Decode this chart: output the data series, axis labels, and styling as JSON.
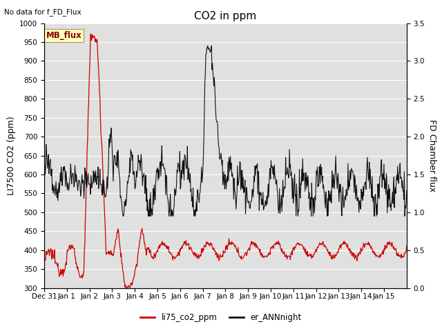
{
  "title": "CO2 in ppm",
  "top_left_text": "No data for f_FD_Flux",
  "ylabel_left": "LI7500 CO2 (ppm)",
  "ylabel_right": "FD Chamber flux",
  "ylim_left": [
    300,
    1000
  ],
  "ylim_right": [
    0.0,
    3.5
  ],
  "yticks_left": [
    300,
    350,
    400,
    450,
    500,
    550,
    600,
    650,
    700,
    750,
    800,
    850,
    900,
    950,
    1000
  ],
  "yticks_right": [
    0.0,
    0.5,
    1.0,
    1.5,
    2.0,
    2.5,
    3.0,
    3.5
  ],
  "xtick_labels": [
    "Dec 31",
    "Jan 1",
    "Jan 2",
    "Jan 3",
    "Jan 4",
    "Jan 5",
    "Jan 6",
    "Jan 7",
    "Jan 8",
    "Jan 9",
    "Jan 10",
    "Jan 11",
    "Jan 12",
    "Jan 13",
    "Jan 14",
    "Jan 15"
  ],
  "legend_labels": [
    "li75_co2_ppm",
    "er_ANNnight"
  ],
  "legend_colors": [
    "#cc0000",
    "#111111"
  ],
  "line_red_color": "#cc0000",
  "line_black_color": "#111111",
  "bg_color": "#e0e0e0",
  "box_facecolor": "#ffffbb",
  "box_edgecolor": "#999966",
  "box_text": "MB_flux",
  "box_text_color": "#880000",
  "grid_color": "#ffffff",
  "title_fontsize": 11,
  "label_fontsize": 9,
  "tick_fontsize": 7.5,
  "n_days": 16,
  "pts_per_day": 48
}
